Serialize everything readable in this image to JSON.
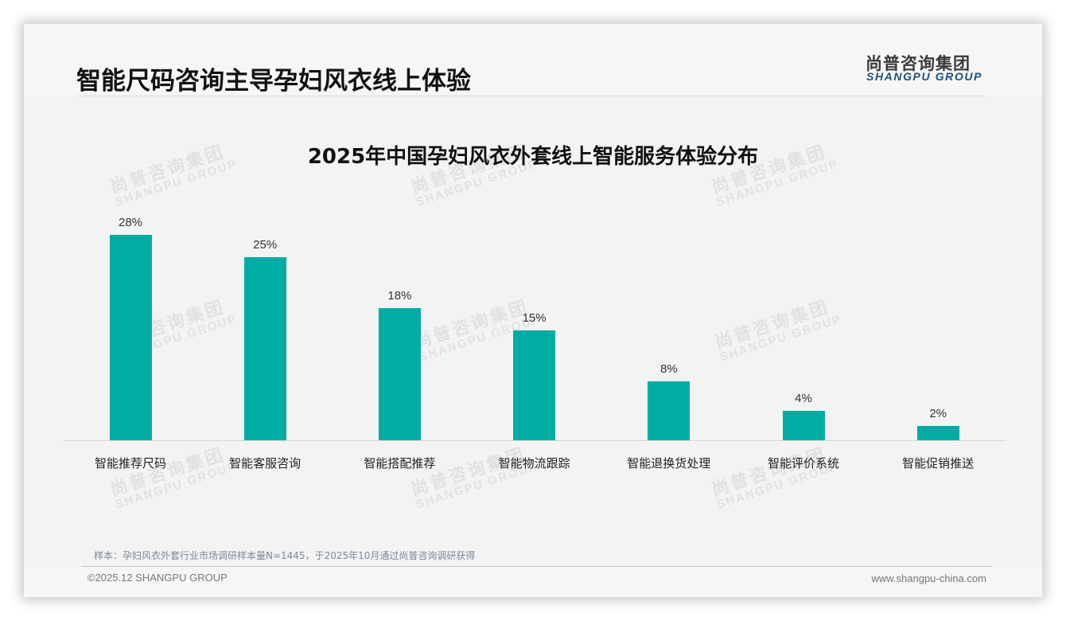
{
  "header": {
    "title": "智能尺码咨询主导孕妇风衣线上体验",
    "logo_cn": "尚普咨询集团",
    "logo_en": "SHANGPU GROUP"
  },
  "watermark": {
    "cn": "尚普咨询集团",
    "en": "SHANGPU GROUP"
  },
  "chart_data": {
    "type": "bar",
    "title": "2025年中国孕妇风衣外套线上智能服务体验分布",
    "categories": [
      "智能推荐尺码",
      "智能客服咨询",
      "智能搭配推荐",
      "智能物流跟踪",
      "智能退换货处理",
      "智能评价系统",
      "智能促销推送"
    ],
    "values": [
      28,
      25,
      18,
      15,
      8,
      4,
      2
    ],
    "value_labels": [
      "28%",
      "25%",
      "18%",
      "15%",
      "8%",
      "4%",
      "2%"
    ],
    "unit": "%",
    "xlabel": "",
    "ylabel": "",
    "ylim": [
      0,
      30
    ],
    "grid": false,
    "legend": "none",
    "bar_color": "#00ada5"
  },
  "footer": {
    "note": "样本：孕妇风衣外套行业市场调研样本量N=1445，于2025年10月通过尚普咨询调研获得",
    "copyright": "©2025.12 SHANGPU GROUP",
    "website": "www.shangpu-china.com"
  }
}
